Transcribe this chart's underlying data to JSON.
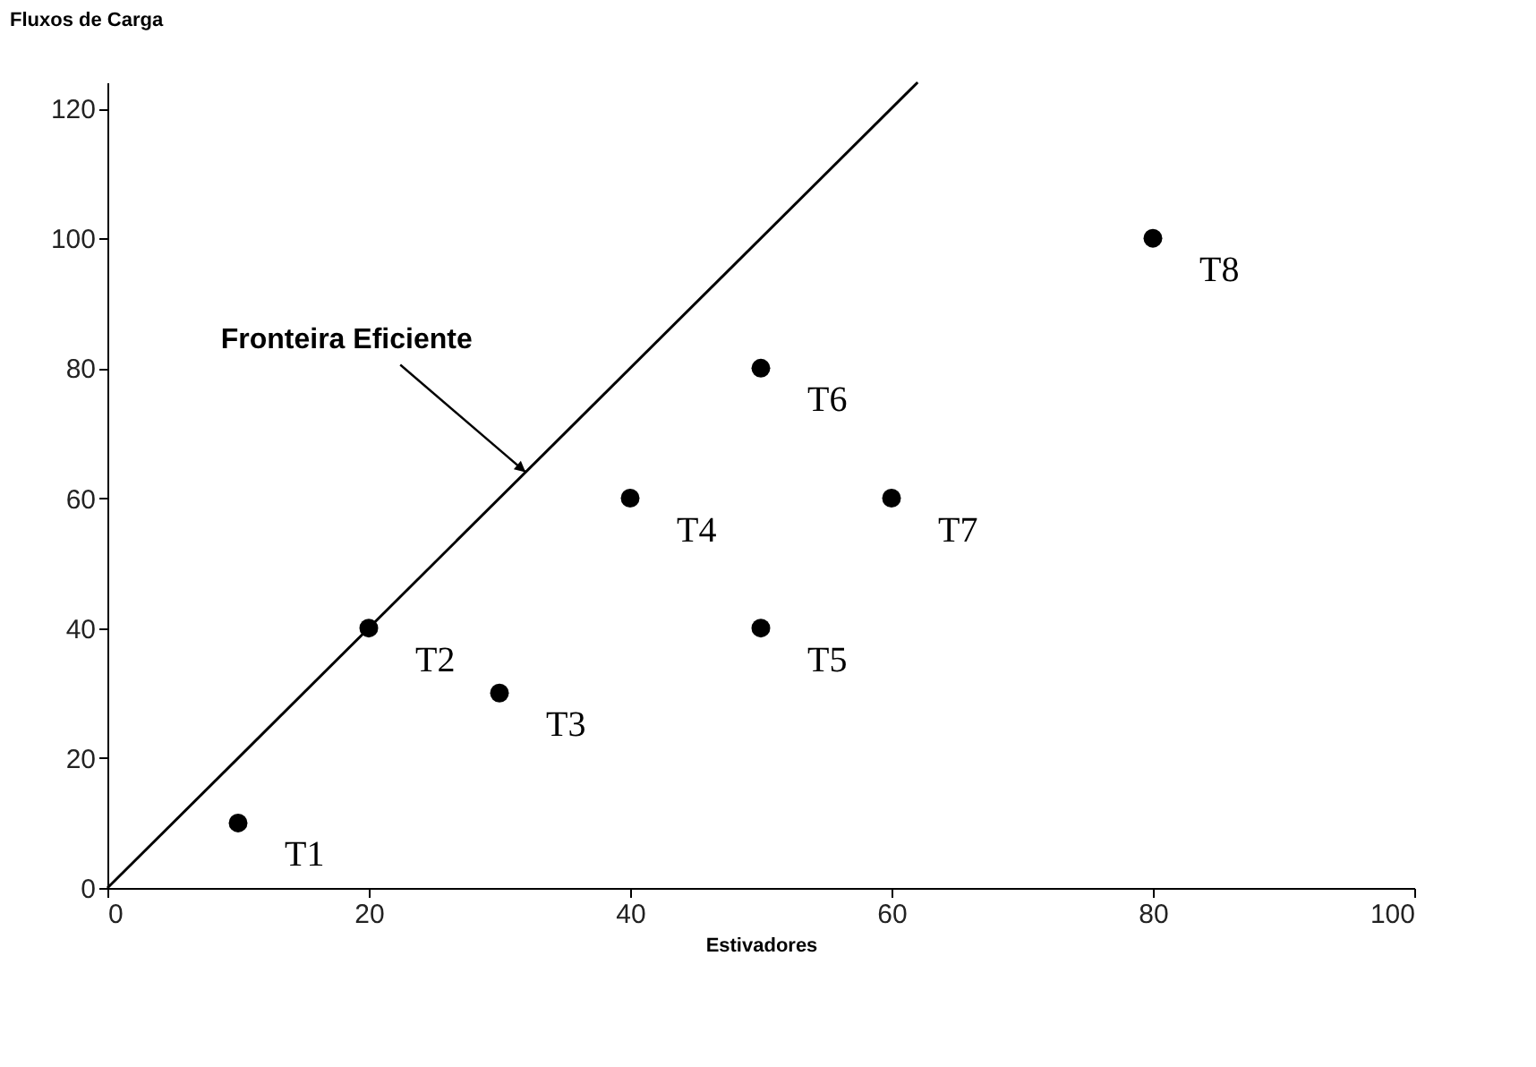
{
  "chart_data": {
    "type": "scatter",
    "xlabel": "Estivadores",
    "ylabel": "Fluxos de Carga",
    "xlim": [
      0,
      100
    ],
    "ylim": [
      0,
      124
    ],
    "xticks": [
      0,
      20,
      40,
      60,
      80,
      100
    ],
    "yticks": [
      0,
      20,
      40,
      60,
      80,
      100,
      120
    ],
    "grid": false,
    "series": [
      {
        "color": "#000000",
        "marker": "circle",
        "x": [
          10,
          20,
          30,
          40,
          50,
          50,
          60,
          80
        ],
        "values": [
          10,
          40,
          30,
          60,
          40,
          80,
          60,
          100
        ],
        "value_labels": [
          "T1",
          "T2",
          "T3",
          "T4",
          "T5",
          "T6",
          "T7",
          "T8"
        ]
      },
      {
        "type": "line",
        "color": "#000000",
        "x": [
          0,
          62
        ],
        "values": [
          0,
          124
        ],
        "line_style": "solid",
        "marker": "none"
      }
    ],
    "annotations": [
      {
        "text": "Fronteira Eficiente",
        "x": 32,
        "y": 64
      }
    ]
  }
}
